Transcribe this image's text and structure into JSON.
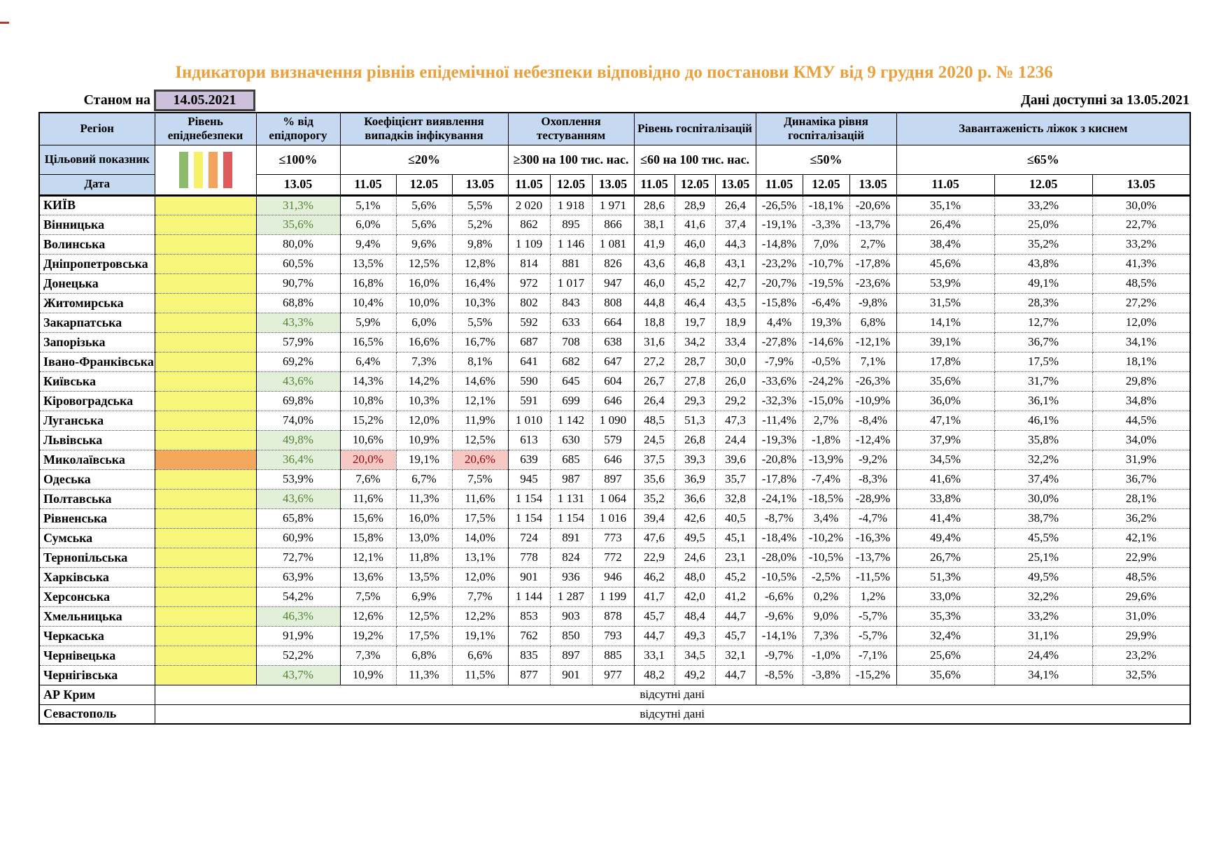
{
  "page": {
    "title": "Індикатори визначення рівнів епідемічної небезпеки відповідно до постанови КМУ від 9 грудня 2020 р. № 1236",
    "as_of_label": "Станом на",
    "as_of_date": "14.05.2021",
    "data_available_label": "Дані доступні за 13.05.2021"
  },
  "colors": {
    "title_orange": "#E8A13C",
    "header_blue": "#C5D9F1",
    "lavender": "#CCC0DA",
    "level_yellow": "#F9F77B",
    "level_orange": "#F5A85C",
    "good_bg": "#E2EFD9",
    "good_text": "#538135",
    "bad_bg": "#F7C9C4",
    "bad_text": "#9C0006",
    "legend": [
      "#8DBA6C",
      "#F6F169",
      "#F2A45F",
      "#DE5A5C"
    ]
  },
  "table": {
    "header": {
      "region": "Регіон",
      "level": "Рівень епіднебезпеки",
      "target_label": "Цільовий показник",
      "date_label": "Дата",
      "groups": [
        {
          "label": "% від епідпорогу",
          "target": "≤100%",
          "dates": [
            "13.05"
          ]
        },
        {
          "label": "Коефіцієнт виявлення випадків інфікування",
          "target": "≤20%",
          "dates": [
            "11.05",
            "12.05",
            "13.05"
          ]
        },
        {
          "label": "Охоплення тестуванням",
          "target": "≥300 на 100 тис. нас.",
          "dates": [
            "11.05",
            "12.05",
            "13.05"
          ]
        },
        {
          "label": "Рівень госпіталізацій",
          "target": "≤60 на 100 тис. нас.",
          "dates": [
            "11.05",
            "12.05",
            "13.05"
          ]
        },
        {
          "label": "Динаміка рівня госпіталізацій",
          "target": "≤50%",
          "dates": [
            "11.05",
            "12.05",
            "13.05"
          ]
        },
        {
          "label": "Завантаженість ліжок з киснем",
          "target": "≤65%",
          "dates": [
            "11.05",
            "12.05",
            "13.05"
          ]
        }
      ]
    },
    "no_data_text": "відсутні дані",
    "rows": [
      {
        "region": "КИЇВ",
        "level": "yellow",
        "pct": "31,3%",
        "pct_good": true,
        "coef": [
          "5,1%",
          "5,6%",
          "5,5%"
        ],
        "test": [
          "2 020",
          "1 918",
          "1 971"
        ],
        "hosp": [
          "28,6",
          "28,9",
          "26,4"
        ],
        "dyn": [
          "-26,5%",
          "-18,1%",
          "-20,6%"
        ],
        "beds": [
          "35,1%",
          "33,2%",
          "30,0%"
        ]
      },
      {
        "region": "Вінницька",
        "level": "yellow",
        "pct": "35,6%",
        "pct_good": true,
        "coef": [
          "6,0%",
          "5,6%",
          "5,2%"
        ],
        "test": [
          "862",
          "895",
          "866"
        ],
        "hosp": [
          "38,1",
          "41,6",
          "37,4"
        ],
        "dyn": [
          "-19,1%",
          "-3,3%",
          "-13,7%"
        ],
        "beds": [
          "26,4%",
          "25,0%",
          "22,7%"
        ]
      },
      {
        "region": "Волинська",
        "level": "yellow",
        "pct": "80,0%",
        "pct_good": false,
        "coef": [
          "9,4%",
          "9,6%",
          "9,8%"
        ],
        "test": [
          "1 109",
          "1 146",
          "1 081"
        ],
        "hosp": [
          "41,9",
          "46,0",
          "44,3"
        ],
        "dyn": [
          "-14,8%",
          "7,0%",
          "2,7%"
        ],
        "beds": [
          "38,4%",
          "35,2%",
          "33,2%"
        ]
      },
      {
        "region": "Дніпропетровська",
        "level": "yellow",
        "pct": "60,5%",
        "pct_good": false,
        "coef": [
          "13,5%",
          "12,5%",
          "12,8%"
        ],
        "test": [
          "814",
          "881",
          "826"
        ],
        "hosp": [
          "43,6",
          "46,8",
          "43,1"
        ],
        "dyn": [
          "-23,2%",
          "-10,7%",
          "-17,8%"
        ],
        "beds": [
          "45,6%",
          "43,8%",
          "41,3%"
        ]
      },
      {
        "region": "Донецька",
        "level": "yellow",
        "pct": "90,7%",
        "pct_good": false,
        "coef": [
          "16,8%",
          "16,0%",
          "16,4%"
        ],
        "test": [
          "972",
          "1 017",
          "947"
        ],
        "hosp": [
          "46,0",
          "45,2",
          "42,7"
        ],
        "dyn": [
          "-20,7%",
          "-19,5%",
          "-23,6%"
        ],
        "beds": [
          "53,9%",
          "49,1%",
          "48,5%"
        ]
      },
      {
        "region": "Житомирська",
        "level": "yellow",
        "pct": "68,8%",
        "pct_good": false,
        "coef": [
          "10,4%",
          "10,0%",
          "10,3%"
        ],
        "test": [
          "802",
          "843",
          "808"
        ],
        "hosp": [
          "44,8",
          "46,4",
          "43,5"
        ],
        "dyn": [
          "-15,8%",
          "-6,4%",
          "-9,8%"
        ],
        "beds": [
          "31,5%",
          "28,3%",
          "27,2%"
        ]
      },
      {
        "region": "Закарпатська",
        "level": "yellow",
        "pct": "43,3%",
        "pct_good": true,
        "coef": [
          "5,9%",
          "6,0%",
          "5,5%"
        ],
        "test": [
          "592",
          "633",
          "664"
        ],
        "hosp": [
          "18,8",
          "19,7",
          "18,9"
        ],
        "dyn": [
          "4,4%",
          "19,3%",
          "6,8%"
        ],
        "beds": [
          "14,1%",
          "12,7%",
          "12,0%"
        ]
      },
      {
        "region": "Запорізька",
        "level": "yellow",
        "pct": "57,9%",
        "pct_good": false,
        "coef": [
          "16,5%",
          "16,6%",
          "16,7%"
        ],
        "test": [
          "687",
          "708",
          "638"
        ],
        "hosp": [
          "31,6",
          "34,2",
          "33,4"
        ],
        "dyn": [
          "-27,8%",
          "-14,6%",
          "-12,1%"
        ],
        "beds": [
          "39,1%",
          "36,7%",
          "34,1%"
        ]
      },
      {
        "region": "Івано-Франківська",
        "level": "yellow",
        "pct": "69,2%",
        "pct_good": false,
        "coef": [
          "6,4%",
          "7,3%",
          "8,1%"
        ],
        "test": [
          "641",
          "682",
          "647"
        ],
        "hosp": [
          "27,2",
          "28,7",
          "30,0"
        ],
        "dyn": [
          "-7,9%",
          "-0,5%",
          "7,1%"
        ],
        "beds": [
          "17,8%",
          "17,5%",
          "18,1%"
        ]
      },
      {
        "region": "Київська",
        "level": "yellow",
        "pct": "43,6%",
        "pct_good": true,
        "coef": [
          "14,3%",
          "14,2%",
          "14,6%"
        ],
        "test": [
          "590",
          "645",
          "604"
        ],
        "hosp": [
          "26,7",
          "27,8",
          "26,0"
        ],
        "dyn": [
          "-33,6%",
          "-24,2%",
          "-26,3%"
        ],
        "beds": [
          "35,6%",
          "31,7%",
          "29,8%"
        ]
      },
      {
        "region": "Кіровоградська",
        "level": "yellow",
        "pct": "69,8%",
        "pct_good": false,
        "coef": [
          "10,8%",
          "10,3%",
          "12,1%"
        ],
        "test": [
          "591",
          "699",
          "646"
        ],
        "hosp": [
          "26,4",
          "29,3",
          "29,2"
        ],
        "dyn": [
          "-32,3%",
          "-15,0%",
          "-10,9%"
        ],
        "beds": [
          "36,0%",
          "36,1%",
          "34,8%"
        ]
      },
      {
        "region": "Луганська",
        "level": "yellow",
        "pct": "74,0%",
        "pct_good": false,
        "coef": [
          "15,2%",
          "12,0%",
          "11,9%"
        ],
        "test": [
          "1 010",
          "1 142",
          "1 090"
        ],
        "hosp": [
          "48,5",
          "51,3",
          "47,3"
        ],
        "dyn": [
          "-11,4%",
          "2,7%",
          "-8,4%"
        ],
        "beds": [
          "47,1%",
          "46,1%",
          "44,5%"
        ]
      },
      {
        "region": "Львівська",
        "level": "yellow",
        "pct": "49,8%",
        "pct_good": true,
        "coef": [
          "10,6%",
          "10,9%",
          "12,5%"
        ],
        "test": [
          "613",
          "630",
          "579"
        ],
        "hosp": [
          "24,5",
          "26,8",
          "24,4"
        ],
        "dyn": [
          "-19,3%",
          "-1,8%",
          "-12,4%"
        ],
        "beds": [
          "37,9%",
          "35,8%",
          "34,0%"
        ]
      },
      {
        "region": "Миколаївська",
        "level": "orange",
        "pct": "36,4%",
        "pct_good": true,
        "coef": [
          "20,0%",
          "19,1%",
          "20,6%"
        ],
        "coef_bad": [
          true,
          false,
          true
        ],
        "test": [
          "639",
          "685",
          "646"
        ],
        "hosp": [
          "37,5",
          "39,3",
          "39,6"
        ],
        "dyn": [
          "-20,8%",
          "-13,9%",
          "-9,2%"
        ],
        "beds": [
          "34,5%",
          "32,2%",
          "31,9%"
        ]
      },
      {
        "region": "Одеська",
        "level": "yellow",
        "pct": "53,9%",
        "pct_good": false,
        "coef": [
          "7,6%",
          "6,7%",
          "7,5%"
        ],
        "test": [
          "945",
          "987",
          "897"
        ],
        "hosp": [
          "35,6",
          "36,9",
          "35,7"
        ],
        "dyn": [
          "-17,8%",
          "-7,4%",
          "-8,3%"
        ],
        "beds": [
          "41,6%",
          "37,4%",
          "36,7%"
        ]
      },
      {
        "region": "Полтавська",
        "level": "yellow",
        "pct": "43,6%",
        "pct_good": true,
        "coef": [
          "11,6%",
          "11,3%",
          "11,6%"
        ],
        "test": [
          "1 154",
          "1 131",
          "1 064"
        ],
        "hosp": [
          "35,2",
          "36,6",
          "32,8"
        ],
        "dyn": [
          "-24,1%",
          "-18,5%",
          "-28,9%"
        ],
        "beds": [
          "33,8%",
          "30,0%",
          "28,1%"
        ]
      },
      {
        "region": "Рівненська",
        "level": "yellow",
        "pct": "65,8%",
        "pct_good": false,
        "coef": [
          "15,6%",
          "16,0%",
          "17,5%"
        ],
        "test": [
          "1 154",
          "1 154",
          "1 016"
        ],
        "hosp": [
          "39,4",
          "42,6",
          "40,5"
        ],
        "dyn": [
          "-8,7%",
          "3,4%",
          "-4,7%"
        ],
        "beds": [
          "41,4%",
          "38,7%",
          "36,2%"
        ]
      },
      {
        "region": "Сумська",
        "level": "yellow",
        "pct": "60,9%",
        "pct_good": false,
        "coef": [
          "15,8%",
          "13,0%",
          "14,0%"
        ],
        "test": [
          "724",
          "891",
          "773"
        ],
        "hosp": [
          "47,6",
          "49,5",
          "45,1"
        ],
        "dyn": [
          "-18,4%",
          "-10,2%",
          "-16,3%"
        ],
        "beds": [
          "49,4%",
          "45,5%",
          "42,1%"
        ]
      },
      {
        "region": "Тернопільська",
        "level": "yellow",
        "pct": "72,7%",
        "pct_good": false,
        "coef": [
          "12,1%",
          "11,8%",
          "13,1%"
        ],
        "test": [
          "778",
          "824",
          "772"
        ],
        "hosp": [
          "22,9",
          "24,6",
          "23,1"
        ],
        "dyn": [
          "-28,0%",
          "-10,5%",
          "-13,7%"
        ],
        "beds": [
          "26,7%",
          "25,1%",
          "22,9%"
        ]
      },
      {
        "region": "Харківська",
        "level": "yellow",
        "pct": "63,9%",
        "pct_good": false,
        "coef": [
          "13,6%",
          "13,5%",
          "12,0%"
        ],
        "test": [
          "901",
          "936",
          "946"
        ],
        "hosp": [
          "46,2",
          "48,0",
          "45,2"
        ],
        "dyn": [
          "-10,5%",
          "-2,5%",
          "-11,5%"
        ],
        "beds": [
          "51,3%",
          "49,5%",
          "48,5%"
        ]
      },
      {
        "region": "Херсонська",
        "level": "yellow",
        "pct": "54,2%",
        "pct_good": false,
        "coef": [
          "7,5%",
          "6,9%",
          "7,7%"
        ],
        "test": [
          "1 144",
          "1 287",
          "1 199"
        ],
        "hosp": [
          "41,7",
          "42,0",
          "41,2"
        ],
        "dyn": [
          "-6,6%",
          "0,2%",
          "1,2%"
        ],
        "beds": [
          "33,0%",
          "32,2%",
          "29,6%"
        ]
      },
      {
        "region": "Хмельницька",
        "level": "yellow",
        "pct": "46,3%",
        "pct_good": true,
        "coef": [
          "12,6%",
          "12,5%",
          "12,2%"
        ],
        "test": [
          "853",
          "903",
          "878"
        ],
        "hosp": [
          "45,7",
          "48,4",
          "44,7"
        ],
        "dyn": [
          "-9,6%",
          "9,0%",
          "-5,7%"
        ],
        "beds": [
          "35,3%",
          "33,2%",
          "31,0%"
        ]
      },
      {
        "region": "Черкаська",
        "level": "yellow",
        "pct": "91,9%",
        "pct_good": false,
        "coef": [
          "19,2%",
          "17,5%",
          "19,1%"
        ],
        "test": [
          "762",
          "850",
          "793"
        ],
        "hosp": [
          "44,7",
          "49,3",
          "45,7"
        ],
        "dyn": [
          "-14,1%",
          "7,3%",
          "-5,7%"
        ],
        "beds": [
          "32,4%",
          "31,1%",
          "29,9%"
        ]
      },
      {
        "region": "Чернівецька",
        "level": "yellow",
        "pct": "52,2%",
        "pct_good": false,
        "coef": [
          "7,3%",
          "6,8%",
          "6,6%"
        ],
        "test": [
          "835",
          "897",
          "885"
        ],
        "hosp": [
          "33,1",
          "34,5",
          "32,1"
        ],
        "dyn": [
          "-9,7%",
          "-1,0%",
          "-7,1%"
        ],
        "beds": [
          "25,6%",
          "24,4%",
          "23,2%"
        ]
      },
      {
        "region": "Чернігівська",
        "level": "yellow",
        "pct": "43,7%",
        "pct_good": true,
        "coef": [
          "10,9%",
          "11,3%",
          "11,5%"
        ],
        "test": [
          "877",
          "901",
          "977"
        ],
        "hosp": [
          "48,2",
          "49,2",
          "44,7"
        ],
        "dyn": [
          "-8,5%",
          "-3,8%",
          "-15,2%"
        ],
        "beds": [
          "35,6%",
          "34,1%",
          "32,5%"
        ]
      },
      {
        "region": "АР Крим",
        "no_data": true
      },
      {
        "region": "Севастополь",
        "no_data": true
      }
    ]
  }
}
